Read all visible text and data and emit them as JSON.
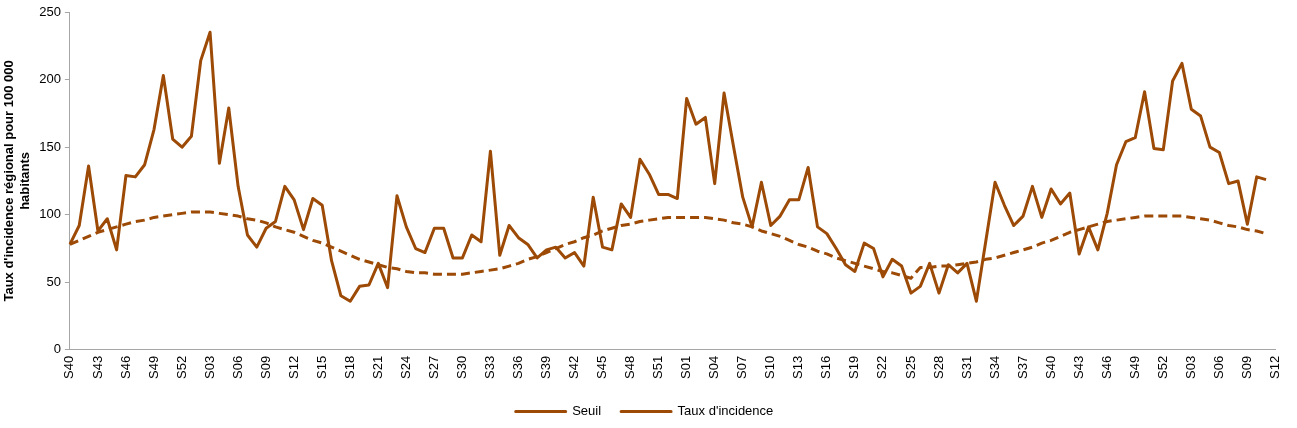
{
  "chart_data": {
    "type": "line",
    "ylabel": "Taux d'incidence régional pour 100 000 habitants",
    "categories": [
      "S40",
      null,
      null,
      "S43",
      null,
      null,
      "S46",
      null,
      null,
      "S49",
      null,
      null,
      "S52",
      null,
      null,
      "S03",
      null,
      null,
      "S06",
      null,
      null,
      "S09",
      null,
      null,
      "S12",
      null,
      null,
      "S15",
      null,
      null,
      "S18",
      null,
      null,
      "S21",
      null,
      null,
      "S24",
      null,
      null,
      "S27",
      null,
      null,
      "S30",
      null,
      null,
      "S33",
      null,
      null,
      "S36",
      null,
      null,
      "S39",
      null,
      null,
      "S42",
      null,
      null,
      "S45",
      null,
      null,
      "S48",
      null,
      null,
      "S51",
      null,
      null,
      "S01",
      null,
      null,
      "S04",
      null,
      null,
      "S07",
      null,
      null,
      "S10",
      null,
      null,
      "S13",
      null,
      null,
      "S16",
      null,
      null,
      "S19",
      null,
      null,
      "S22",
      null,
      null,
      "S25",
      null,
      null,
      "S28",
      null,
      null,
      "S31",
      null,
      null,
      "S34",
      null,
      null,
      "S37",
      null,
      null,
      "S40",
      null,
      null,
      "S43",
      null,
      null,
      "S46",
      null,
      null,
      "S49",
      null,
      null,
      "S52",
      null,
      null,
      "S03",
      null,
      null,
      "S06",
      null,
      null,
      "S09",
      null,
      null,
      "S12"
    ],
    "series": [
      {
        "name": "Seuil",
        "color": "#9c4a06",
        "line_style": "dashed",
        "values": [
          78,
          81,
          84,
          87,
          89,
          91,
          93,
          95,
          96,
          98,
          99,
          100,
          101,
          102,
          102,
          102,
          101,
          100,
          99,
          97,
          96,
          94,
          91,
          89,
          87,
          84,
          81,
          79,
          76,
          73,
          70,
          67,
          65,
          63,
          61,
          60,
          58,
          57,
          57,
          56,
          56,
          56,
          56,
          57,
          58,
          59,
          60,
          62,
          64,
          67,
          69,
          72,
          75,
          78,
          80,
          83,
          85,
          88,
          90,
          92,
          93,
          95,
          96,
          97,
          98,
          98,
          98,
          98,
          98,
          97,
          96,
          94,
          93,
          91,
          88,
          86,
          84,
          81,
          78,
          76,
          73,
          71,
          68,
          66,
          64,
          62,
          60,
          58,
          57,
          55,
          53,
          61,
          61,
          62,
          62,
          63,
          64,
          65,
          67,
          68,
          70,
          72,
          74,
          76,
          79,
          81,
          84,
          87,
          89,
          91,
          93,
          95,
          96,
          97,
          98,
          99,
          99,
          99,
          99,
          99,
          98,
          97,
          96,
          94,
          92,
          91,
          89,
          88,
          86,
          null
        ]
      },
      {
        "name": "Taux d'incidence",
        "color": "#9c4a06",
        "line_style": "solid",
        "values": [
          78,
          92,
          136,
          88,
          97,
          74,
          129,
          128,
          137,
          163,
          203,
          156,
          150,
          158,
          214,
          235,
          138,
          179,
          121,
          85,
          76,
          90,
          95,
          121,
          111,
          89,
          112,
          107,
          66,
          40,
          36,
          47,
          48,
          64,
          46,
          114,
          91,
          75,
          72,
          90,
          90,
          68,
          68,
          85,
          80,
          147,
          70,
          92,
          83,
          78,
          68,
          74,
          76,
          68,
          72,
          62,
          113,
          76,
          74,
          108,
          98,
          141,
          130,
          115,
          115,
          112,
          186,
          167,
          172,
          123,
          190,
          151,
          113,
          91,
          124,
          92,
          99,
          111,
          111,
          135,
          91,
          86,
          75,
          63,
          58,
          79,
          75,
          54,
          67,
          62,
          42,
          47,
          64,
          42,
          63,
          57,
          64,
          36,
          80,
          124,
          107,
          92,
          99,
          121,
          98,
          119,
          108,
          116,
          71,
          91,
          74,
          101,
          137,
          154,
          157,
          191,
          149,
          148,
          199,
          212,
          178,
          173,
          150,
          146,
          123,
          125,
          93,
          128,
          126,
          null
        ]
      }
    ],
    "ylim": [
      0,
      250
    ],
    "yticks": [
      0,
      50,
      100,
      150,
      200,
      250
    ],
    "grid": false,
    "legend": "bottom",
    "marker": "none"
  }
}
